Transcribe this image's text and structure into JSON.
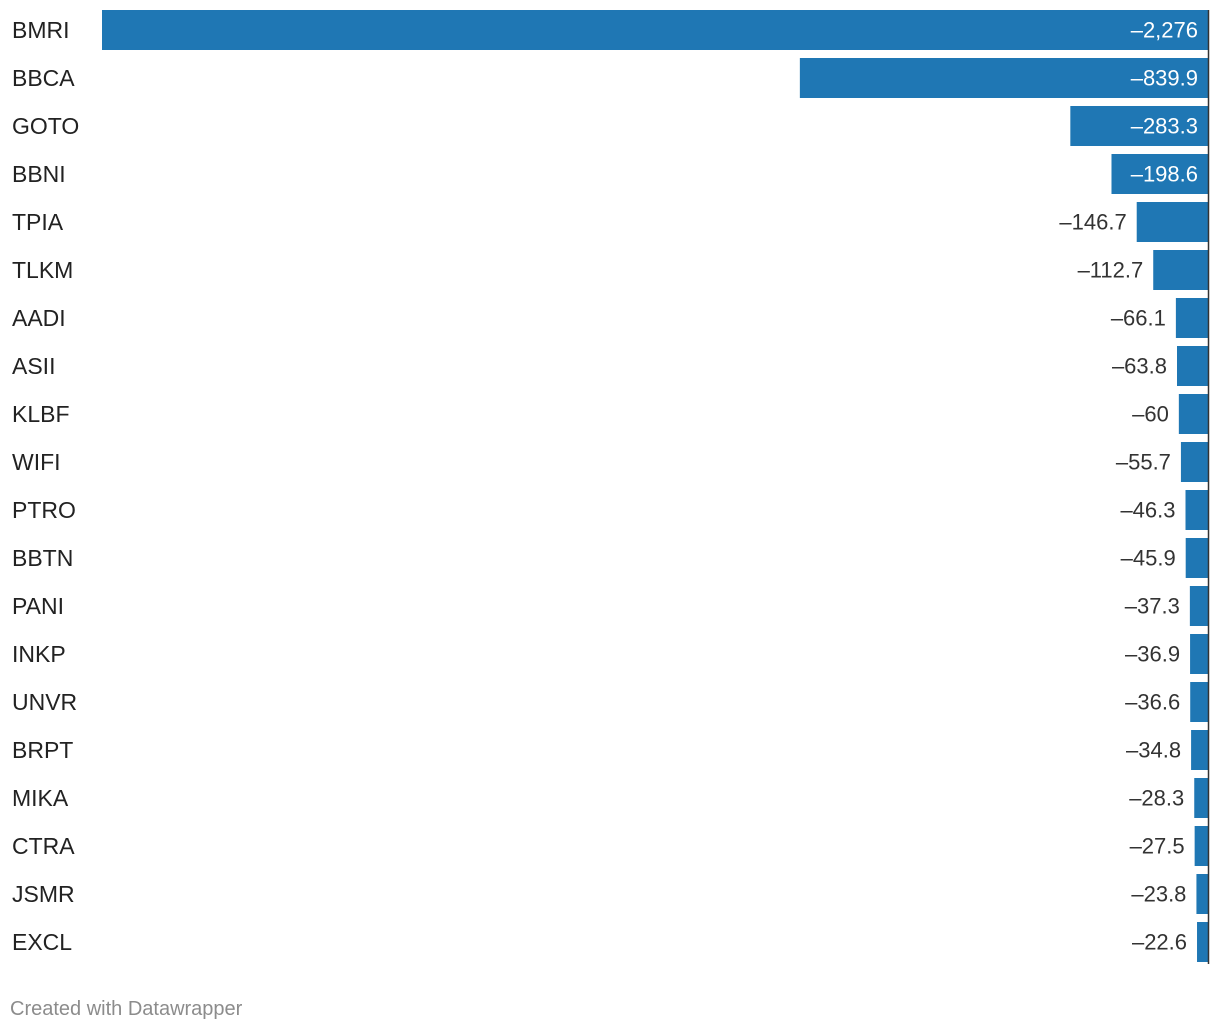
{
  "chart_data": {
    "type": "bar",
    "orientation": "horizontal",
    "categories": [
      "BMRI",
      "BBCA",
      "GOTO",
      "BBNI",
      "TPIA",
      "TLKM",
      "AADI",
      "ASII",
      "KLBF",
      "WIFI",
      "PTRO",
      "BBTN",
      "PANI",
      "INKP",
      "UNVR",
      "BRPT",
      "MIKA",
      "CTRA",
      "JSMR",
      "EXCL"
    ],
    "values": [
      -2276,
      -839.9,
      -283.3,
      -198.6,
      -146.7,
      -112.7,
      -66.1,
      -63.8,
      -60,
      -55.7,
      -46.3,
      -45.9,
      -37.3,
      -36.9,
      -36.6,
      -34.8,
      -28.3,
      -27.5,
      -23.8,
      -22.6
    ],
    "value_labels": [
      "–2,276",
      "–839.9",
      "–283.3",
      "–198.6",
      "–146.7",
      "–112.7",
      "–66.1",
      "–63.8",
      "–60",
      "–55.7",
      "–46.3",
      "–45.9",
      "–37.3",
      "–36.9",
      "–36.6",
      "–34.8",
      "–28.3",
      "–27.5",
      "–23.8",
      "–22.6"
    ],
    "xlim": [
      -2276,
      0
    ],
    "grid": false,
    "legend": "none"
  },
  "colors": {
    "bar": "#1f77b4",
    "label_inside": "#ffffff",
    "label_outside": "#333333",
    "axis_line": "#333333"
  },
  "footer": {
    "credit": "Created with Datawrapper"
  }
}
